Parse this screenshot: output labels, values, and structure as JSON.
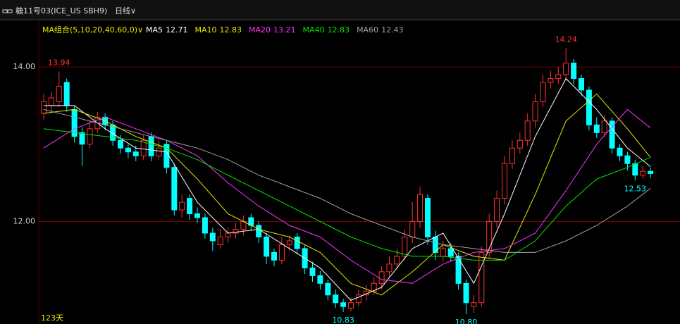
{
  "header": {
    "title": "糖11号03(ICE_US SBH9)",
    "period": "日线∨"
  },
  "chart_data": {
    "type": "candlestick",
    "indicator_label": "MA组合(5,10,20,40,60,0)∨",
    "period_label": "123天",
    "up_color": "#ff3232",
    "down_color": "#00ffff",
    "ylim": [
      10.72,
      14.41
    ],
    "yticks": [
      {
        "value": 14,
        "label": "14.00"
      },
      {
        "value": 12,
        "label": "12.00"
      }
    ],
    "grid": true,
    "open": [
      13.4,
      13.5,
      13.55,
      13.8,
      13.45,
      13.15,
      13.0,
      13.2,
      13.35,
      13.25,
      13.05,
      12.95,
      12.9,
      12.85,
      13.1,
      12.85,
      13.0,
      12.7,
      12.15,
      12.3,
      12.1,
      12.05,
      11.85,
      11.7,
      11.8,
      11.85,
      11.9,
      12.05,
      11.95,
      11.8,
      11.6,
      11.5,
      11.7,
      11.8,
      11.65,
      11.4,
      11.3,
      11.2,
      11.05,
      10.95,
      10.88,
      10.95,
      11.05,
      11.1,
      11.2,
      11.35,
      11.45,
      11.55,
      11.8,
      12.0,
      12.3,
      11.8,
      11.55,
      11.65,
      11.55,
      11.2,
      10.9,
      10.95,
      11.6,
      12.0,
      12.3,
      12.75,
      12.95,
      13.05,
      13.3,
      13.55,
      13.8,
      13.85,
      13.9,
      14.05,
      13.85,
      13.7,
      13.25,
      13.15,
      13.3,
      12.95,
      12.85,
      12.75,
      12.6,
      12.65
    ],
    "high": [
      13.65,
      13.68,
      13.94,
      13.85,
      13.5,
      13.22,
      13.3,
      13.42,
      13.4,
      13.3,
      13.12,
      13.0,
      12.98,
      13.12,
      13.15,
      13.05,
      13.05,
      12.75,
      12.35,
      12.35,
      12.18,
      12.1,
      11.92,
      11.9,
      11.92,
      11.98,
      12.08,
      12.1,
      12.0,
      11.85,
      11.65,
      11.8,
      11.82,
      11.85,
      11.7,
      11.48,
      11.36,
      11.25,
      11.12,
      11.0,
      11.02,
      11.12,
      11.18,
      11.28,
      11.42,
      11.55,
      11.65,
      11.9,
      12.25,
      12.45,
      12.35,
      11.88,
      11.75,
      11.72,
      11.6,
      11.25,
      11.05,
      11.68,
      12.1,
      12.4,
      12.85,
      13.05,
      13.15,
      13.4,
      13.65,
      13.9,
      13.95,
      14.0,
      14.24,
      14.1,
      13.9,
      13.75,
      13.35,
      13.38,
      13.35,
      13.0,
      12.9,
      12.8,
      12.72,
      12.7
    ],
    "low": [
      13.32,
      13.42,
      13.48,
      13.42,
      13.02,
      12.72,
      12.95,
      13.15,
      13.18,
      12.98,
      12.88,
      12.82,
      12.78,
      12.8,
      12.78,
      12.8,
      12.62,
      12.08,
      12.05,
      12.02,
      11.98,
      11.78,
      11.62,
      11.65,
      11.72,
      11.78,
      11.82,
      11.88,
      11.72,
      11.45,
      11.42,
      11.45,
      11.62,
      11.58,
      11.32,
      11.22,
      11.12,
      10.98,
      10.88,
      10.83,
      10.84,
      10.9,
      10.98,
      11.05,
      11.12,
      11.28,
      11.38,
      11.5,
      11.72,
      11.92,
      11.7,
      11.5,
      11.48,
      11.48,
      11.12,
      10.8,
      10.82,
      10.9,
      11.52,
      11.92,
      12.22,
      12.68,
      12.88,
      12.98,
      13.22,
      13.48,
      13.72,
      13.78,
      13.82,
      13.78,
      13.62,
      13.18,
      13.08,
      13.1,
      12.88,
      12.78,
      12.66,
      12.53,
      12.55,
      12.56
    ],
    "close": [
      13.55,
      13.6,
      13.75,
      13.5,
      13.1,
      13.0,
      13.2,
      13.35,
      13.25,
      13.05,
      12.95,
      12.9,
      12.85,
      13.05,
      12.85,
      12.95,
      12.7,
      12.15,
      12.25,
      12.1,
      12.05,
      11.85,
      11.75,
      11.8,
      11.85,
      11.9,
      12.0,
      11.95,
      11.8,
      11.55,
      11.5,
      11.7,
      11.75,
      11.65,
      11.4,
      11.3,
      11.2,
      11.05,
      10.95,
      10.9,
      10.95,
      11.05,
      11.1,
      11.2,
      11.35,
      11.45,
      11.55,
      11.8,
      12.0,
      12.35,
      11.8,
      11.6,
      11.65,
      11.55,
      11.2,
      10.95,
      10.95,
      11.6,
      12.0,
      12.3,
      12.75,
      12.95,
      13.05,
      13.3,
      13.55,
      13.8,
      13.85,
      13.9,
      14.05,
      13.85,
      13.7,
      13.25,
      13.15,
      13.3,
      12.95,
      12.85,
      12.75,
      12.6,
      12.65,
      12.62
    ],
    "annotations": [
      "13.94",
      "14.24",
      "10.83",
      "10.80",
      "12.53"
    ],
    "series": [
      {
        "name": "MA5",
        "color": "#ffffff",
        "x": [
          0,
          4,
          8,
          12,
          16,
          20,
          24,
          28,
          32,
          36,
          40,
          44,
          48,
          52,
          56,
          60,
          64,
          68,
          72,
          76,
          79
        ],
        "values": [
          13.5,
          13.5,
          13.2,
          12.95,
          12.9,
          12.25,
          11.85,
          11.9,
          11.65,
          11.4,
          10.98,
          11.15,
          11.65,
          11.85,
          11.2,
          12.1,
          13.1,
          13.85,
          13.45,
          12.95,
          12.71
        ]
      },
      {
        "name": "MA10",
        "color": "#e8e800",
        "x": [
          0,
          4,
          8,
          12,
          16,
          20,
          24,
          28,
          32,
          36,
          40,
          44,
          48,
          52,
          56,
          60,
          64,
          68,
          72,
          76,
          79
        ],
        "values": [
          13.4,
          13.45,
          13.3,
          13.1,
          12.95,
          12.55,
          12.1,
          11.9,
          11.8,
          11.6,
          11.2,
          11.05,
          11.35,
          11.7,
          11.55,
          11.5,
          12.35,
          13.3,
          13.65,
          13.2,
          12.83
        ]
      },
      {
        "name": "MA20",
        "color": "#ff33ff",
        "x": [
          0,
          4,
          8,
          12,
          16,
          20,
          24,
          28,
          32,
          36,
          40,
          44,
          48,
          52,
          56,
          60,
          64,
          68,
          72,
          76,
          79
        ],
        "values": [
          12.95,
          13.2,
          13.35,
          13.2,
          13.05,
          12.85,
          12.5,
          12.2,
          11.95,
          11.8,
          11.5,
          11.25,
          11.2,
          11.45,
          11.6,
          11.65,
          11.85,
          12.4,
          13.0,
          13.45,
          13.21
        ]
      },
      {
        "name": "MA40",
        "color": "#00e600",
        "x": [
          0,
          4,
          8,
          12,
          16,
          20,
          24,
          28,
          32,
          36,
          40,
          44,
          48,
          52,
          56,
          60,
          64,
          68,
          72,
          76,
          79
        ],
        "values": [
          13.2,
          13.15,
          13.1,
          13.05,
          12.95,
          12.8,
          12.6,
          12.4,
          12.2,
          12.0,
          11.8,
          11.65,
          11.55,
          11.55,
          11.5,
          11.5,
          11.75,
          12.2,
          12.55,
          12.7,
          12.83
        ]
      },
      {
        "name": "MA60",
        "color": "#a0a0a0",
        "x": [
          0,
          4,
          8,
          12,
          16,
          20,
          24,
          28,
          32,
          36,
          40,
          44,
          48,
          52,
          56,
          60,
          64,
          68,
          72,
          76,
          79
        ],
        "values": [
          13.45,
          13.35,
          13.25,
          13.15,
          13.05,
          12.95,
          12.8,
          12.6,
          12.45,
          12.3,
          12.1,
          11.95,
          11.8,
          11.7,
          11.65,
          11.6,
          11.6,
          11.75,
          11.95,
          12.2,
          12.43
        ]
      }
    ]
  }
}
